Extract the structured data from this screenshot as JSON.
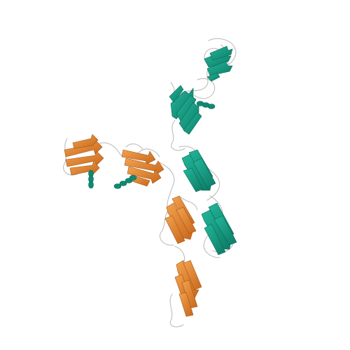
{
  "scene": {
    "background_color": "#ffffff",
    "colors": {
      "chain_a_strands": "#e8892e",
      "chain_a_strands_dark": "#c8671a",
      "chain_b_strands": "#16a085",
      "chain_b_strands_dark": "#0e7a66",
      "coil": "#c9c9c9",
      "coil_dark": "#9a9a9a"
    },
    "elements": [
      "protein-ribbon-structure",
      "orange-chain",
      "teal-chain"
    ]
  }
}
